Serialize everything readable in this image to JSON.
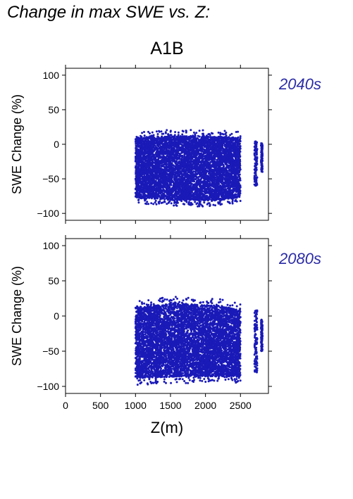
{
  "heading": "Change in max SWE vs. Z:",
  "scenario": "A1B",
  "colors": {
    "points": "#1a1ab8",
    "period_label": "#2b2ba6",
    "axes": "#000000"
  },
  "chart_data": [
    {
      "type": "scatter",
      "panel_label": "2040s",
      "ylabel": "SWE Change (%)",
      "xlabel": "",
      "xlim": [
        0,
        2900
      ],
      "ylim": [
        -110,
        110
      ],
      "xticks": [
        0,
        500,
        1000,
        1500,
        2000,
        2500
      ],
      "yticks": [
        -100,
        -50,
        0,
        50,
        100
      ],
      "ytick_labels": [
        "−100",
        "−50",
        "0",
        "50",
        "100"
      ],
      "clusters": [
        {
          "x_range": [
            1000,
            2500
          ],
          "y_top": [
            18,
            20,
            21,
            21,
            20,
            18
          ],
          "y_bottom": [
            -85,
            -88,
            -90,
            -90,
            -90,
            -85
          ],
          "note": "dense band"
        },
        {
          "x_range": [
            2700,
            2740
          ],
          "y_top": [
            5,
            5
          ],
          "y_bottom": [
            -60,
            -60
          ]
        },
        {
          "x_range": [
            2795,
            2815
          ],
          "y_top": [
            2,
            2
          ],
          "y_bottom": [
            -40,
            -40
          ]
        }
      ]
    },
    {
      "type": "scatter",
      "panel_label": "2080s",
      "ylabel": "SWE Change (%)",
      "xlabel": "Z(m)",
      "xlim": [
        0,
        2900
      ],
      "ylim": [
        -110,
        110
      ],
      "xticks": [
        0,
        500,
        1000,
        1500,
        2000,
        2500
      ],
      "xtick_labels": [
        "0",
        "500",
        "1000",
        "1500",
        "2000",
        "2500"
      ],
      "yticks": [
        -100,
        -50,
        0,
        50,
        100
      ],
      "ytick_labels": [
        "−100",
        "−50",
        "0",
        "50",
        "100"
      ],
      "clusters": [
        {
          "x_range": [
            1000,
            2500
          ],
          "y_top": [
            22,
            25,
            28,
            26,
            24,
            18
          ],
          "y_bottom": [
            -98,
            -97,
            -96,
            -96,
            -95,
            -95
          ],
          "note": "dense band"
        },
        {
          "x_range": [
            2700,
            2740
          ],
          "y_top": [
            8,
            8
          ],
          "y_bottom": [
            -80,
            -80
          ]
        },
        {
          "x_range": [
            2795,
            2815
          ],
          "y_top": [
            -5,
            -5
          ],
          "y_bottom": [
            -50,
            -50
          ]
        }
      ]
    }
  ]
}
